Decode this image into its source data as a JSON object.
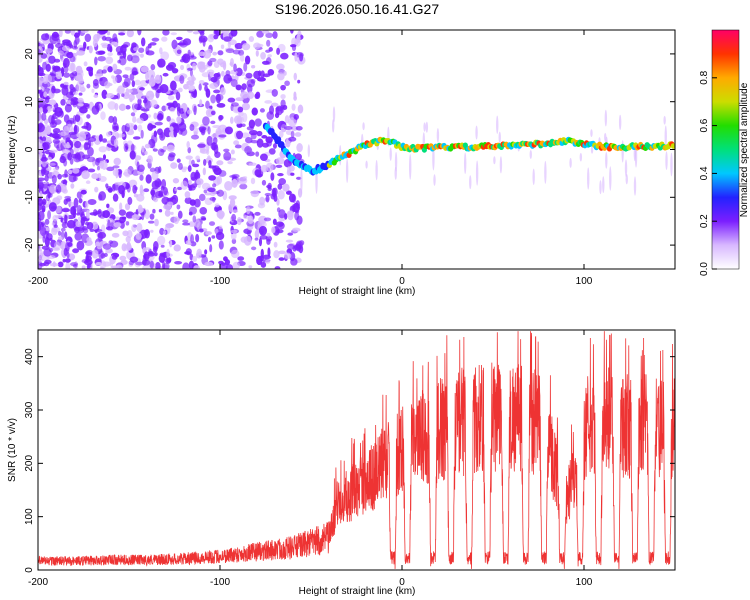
{
  "title": "S196.2026.050.16.41.G27",
  "colors": {
    "snr_line": "#ee3333",
    "axis": "#000000",
    "background": "#ffffff"
  },
  "chart_data": [
    {
      "type": "heatmap",
      "name": "spectrogram",
      "xlabel": "Height of straight line (km)",
      "ylabel": "Frequency (Hz)",
      "xlim": [
        -200,
        150
      ],
      "ylim": [
        -25,
        25
      ],
      "xticks": [
        -200,
        -100,
        0,
        100
      ],
      "yticks": [
        -20,
        -10,
        0,
        10,
        20
      ],
      "xtick_labels": [
        "-200",
        "-100",
        "0",
        "100"
      ],
      "ytick_labels": [
        "-20",
        "-10",
        "0",
        "10",
        "20"
      ],
      "ridge": {
        "x": [
          -75,
          -70,
          -65,
          -60,
          -55,
          -50,
          -45,
          -40,
          -35,
          -30,
          -25,
          -20,
          -15,
          -10,
          -5,
          0,
          10,
          20,
          40,
          60,
          80,
          90,
          100,
          110,
          120,
          130,
          140,
          150
        ],
        "y": [
          5,
          3,
          0,
          -2,
          -3.5,
          -4.5,
          -4,
          -3,
          -2,
          -1,
          0,
          1,
          1.5,
          2,
          1.5,
          0.5,
          0.2,
          0.5,
          0.5,
          0.8,
          1.3,
          1.8,
          1.2,
          0.6,
          0.5,
          0.6,
          0.7,
          0.8
        ]
      },
      "scatter_region": "noise concentrated at heights below -60 km, strongest near -200 to -120 km",
      "colorbar": {
        "label": "Normalized spectral amplitude",
        "range": [
          0.0,
          1.0
        ],
        "ticks": [
          0.0,
          0.2,
          0.4,
          0.6,
          0.8
        ],
        "tick_labels": [
          "0.0",
          "0.2",
          "0.4",
          "0.6",
          "0.8"
        ],
        "colors": [
          "#ffffff",
          "#d8b8ff",
          "#7b1fff",
          "#2222ff",
          "#00c8ff",
          "#00e07a",
          "#22dd00",
          "#ccdd00",
          "#ffaa00",
          "#ff3300",
          "#ff0066"
        ]
      }
    },
    {
      "type": "line",
      "name": "snr",
      "xlabel": "Height of straight line (km)",
      "ylabel": "SNR (10 * v/v)",
      "xlim": [
        -200,
        150
      ],
      "ylim": [
        0,
        450
      ],
      "xticks": [
        -200,
        -100,
        0,
        100
      ],
      "yticks": [
        0,
        100,
        200,
        300,
        400
      ],
      "xtick_labels": [
        "-200",
        "-100",
        "0",
        "100"
      ],
      "ytick_labels": [
        "0",
        "100",
        "200",
        "300",
        "400"
      ],
      "series": [
        {
          "name": "SNR envelope",
          "x": [
            -200,
            -180,
            -160,
            -140,
            -120,
            -100,
            -90,
            -80,
            -70,
            -60,
            -55,
            -50,
            -45,
            -40,
            -35,
            -30,
            -25,
            -20,
            -15,
            -10,
            -5,
            0,
            5,
            10,
            20,
            30,
            40,
            50,
            60,
            70,
            80,
            85,
            90,
            95,
            100,
            110,
            120,
            130,
            140,
            150
          ],
          "y": [
            20,
            20,
            22,
            22,
            25,
            30,
            35,
            40,
            45,
            50,
            55,
            60,
            65,
            70,
            150,
            160,
            170,
            190,
            200,
            230,
            250,
            260,
            270,
            280,
            300,
            320,
            320,
            330,
            330,
            320,
            300,
            200,
            150,
            200,
            300,
            320,
            310,
            310,
            300,
            300
          ]
        }
      ],
      "dropouts_x": [
        -5,
        3,
        17,
        27,
        37,
        47,
        57,
        68,
        78,
        88,
        98,
        108,
        118,
        128,
        137,
        146
      ]
    }
  ]
}
